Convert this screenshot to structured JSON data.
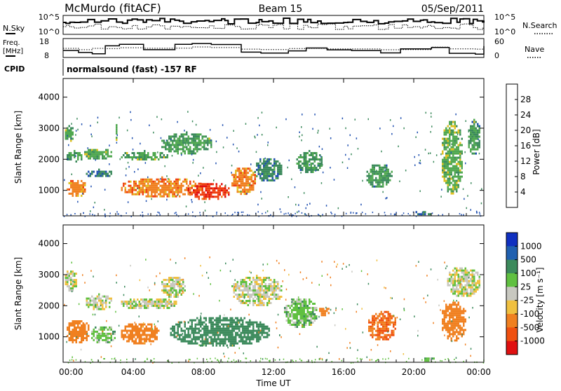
{
  "header": {
    "station": "McMurdo (fitACF)",
    "beam": "Beam 15",
    "date": "05/Sep/2011"
  },
  "strip": {
    "nsky_label": "N.Sky",
    "nsearch_label": "N.Search",
    "nsky_ticks": [
      "10^5",
      "10^0"
    ],
    "nsearch_ticks": [
      "10^5",
      "10^0"
    ],
    "freq_label": "Freq.",
    "freq_unit": "[MHz]",
    "freq_ticks": [
      "18",
      "8"
    ],
    "nave_label": "Nave",
    "nave_ticks": [
      "60",
      "0"
    ],
    "cpid_label": "CPID",
    "cpid_value": "normalsound (fast) -157 RF"
  },
  "axes": {
    "x_label": "Time UT",
    "x_ticks": [
      "00:00",
      "04:00",
      "08:00",
      "12:00",
      "16:00",
      "20:00",
      "00:00"
    ],
    "y_label": "Slant Range [km]",
    "y_ticks": [
      "4000",
      "3000",
      "2000",
      "1000"
    ]
  },
  "power_scale": {
    "label": "Power [dB]",
    "ticks": [
      "28",
      "24",
      "20",
      "16",
      "12",
      "8",
      "4"
    ],
    "colors": [
      "#1020e0",
      "#2050b0",
      "#3c8a5c",
      "#50a850",
      "#e0c020",
      "#f08020",
      "#f04010",
      "#e01010"
    ]
  },
  "velocity_scale": {
    "label": "Velocity [m s⁻¹]",
    "ticks": [
      "1000",
      "500",
      "100",
      "25",
      "-25",
      "-100",
      "-500",
      "-1000"
    ],
    "colors": [
      "#1030c0",
      "#2060b0",
      "#3c8a5c",
      "#60c040",
      "#c8c8c0",
      "#f0c040",
      "#f08020",
      "#f05010",
      "#e01010"
    ]
  },
  "chart_data": [
    {
      "type": "heatmap",
      "panel": "power",
      "title": "",
      "xlabel": "Time UT",
      "ylabel": "Slant Range [km]",
      "xlim": [
        0,
        24
      ],
      "ylim": [
        180,
        4600
      ],
      "x_unit": "hours UT",
      "colorbar": {
        "label": "Power [dB]",
        "range": [
          0,
          30
        ]
      },
      "regions": [
        {
          "t": [
            0.0,
            0.6
          ],
          "r": [
            2600,
            3100
          ],
          "value": 14
        },
        {
          "t": [
            0.1,
            1.1
          ],
          "r": [
            1950,
            2300
          ],
          "value": 12
        },
        {
          "t": [
            0.1,
            1.3
          ],
          "r": [
            800,
            1400
          ],
          "value": 22
        },
        {
          "t": [
            1.1,
            2.8
          ],
          "r": [
            2000,
            2400
          ],
          "value": 14
        },
        {
          "t": [
            1.2,
            2.8
          ],
          "r": [
            1450,
            1700
          ],
          "value": 8
        },
        {
          "t": [
            2.9,
            3.1
          ],
          "r": [
            2600,
            3200
          ],
          "value": 16
        },
        {
          "t": [
            3.2,
            6.0
          ],
          "r": [
            2000,
            2300
          ],
          "value": 13
        },
        {
          "t": [
            3.2,
            8.0
          ],
          "r": [
            800,
            1450
          ],
          "value": 22
        },
        {
          "t": [
            5.5,
            8.5
          ],
          "r": [
            2200,
            2900
          ],
          "value": 12
        },
        {
          "t": [
            7.0,
            9.5
          ],
          "r": [
            700,
            1300
          ],
          "value": 27
        },
        {
          "t": [
            9.5,
            11.0
          ],
          "r": [
            900,
            1800
          ],
          "value": 22
        },
        {
          "t": [
            10.8,
            12.5
          ],
          "r": [
            1300,
            2100
          ],
          "value": 10
        },
        {
          "t": [
            13.2,
            14.8
          ],
          "r": [
            1600,
            2300
          ],
          "value": 12
        },
        {
          "t": [
            17.2,
            18.8
          ],
          "r": [
            1100,
            1900
          ],
          "value": 12
        },
        {
          "t": [
            20.0,
            21.0
          ],
          "r": [
            200,
            400
          ],
          "value": 8
        },
        {
          "t": [
            21.5,
            22.8
          ],
          "r": [
            900,
            3300
          ],
          "value": 14
        },
        {
          "t": [
            23.0,
            23.8
          ],
          "r": [
            2200,
            3300
          ],
          "value": 12
        }
      ]
    },
    {
      "type": "heatmap",
      "panel": "velocity",
      "title": "",
      "xlabel": "Time UT",
      "ylabel": "Slant Range [km]",
      "xlim": [
        0,
        24
      ],
      "ylim": [
        180,
        4600
      ],
      "x_unit": "hours UT",
      "colorbar": {
        "label": "Velocity [m s⁻¹]",
        "range": [
          -1000,
          1000
        ]
      },
      "regions": [
        {
          "t": [
            0.0,
            0.8
          ],
          "r": [
            2500,
            3200
          ],
          "value": 0
        },
        {
          "t": [
            0.1,
            1.5
          ],
          "r": [
            800,
            1600
          ],
          "value": -200
        },
        {
          "t": [
            1.2,
            2.8
          ],
          "r": [
            1900,
            2400
          ],
          "value": 0
        },
        {
          "t": [
            1.5,
            3.0
          ],
          "r": [
            800,
            1400
          ],
          "value": 50
        },
        {
          "t": [
            3.2,
            6.5
          ],
          "r": [
            1900,
            2300
          ],
          "value": 0
        },
        {
          "t": [
            3.2,
            5.5
          ],
          "r": [
            800,
            1500
          ],
          "value": -200
        },
        {
          "t": [
            5.5,
            7.0
          ],
          "r": [
            2300,
            3000
          ],
          "value": 0
        },
        {
          "t": [
            6.0,
            11.8
          ],
          "r": [
            700,
            1700
          ],
          "value": 300
        },
        {
          "t": [
            9.5,
            12.5
          ],
          "r": [
            2000,
            3000
          ],
          "value": 0
        },
        {
          "t": [
            12.5,
            14.5
          ],
          "r": [
            1300,
            2300
          ],
          "value": 60
        },
        {
          "t": [
            14.5,
            15.2
          ],
          "r": [
            1700,
            2000
          ],
          "value": -200
        },
        {
          "t": [
            17.3,
            19.0
          ],
          "r": [
            900,
            1900
          ],
          "value": -500
        },
        {
          "t": [
            20.5,
            21.2
          ],
          "r": [
            200,
            400
          ],
          "value": 60
        },
        {
          "t": [
            21.5,
            23.0
          ],
          "r": [
            900,
            2200
          ],
          "value": -300
        },
        {
          "t": [
            21.8,
            23.8
          ],
          "r": [
            2300,
            3300
          ],
          "value": 0
        }
      ]
    }
  ]
}
